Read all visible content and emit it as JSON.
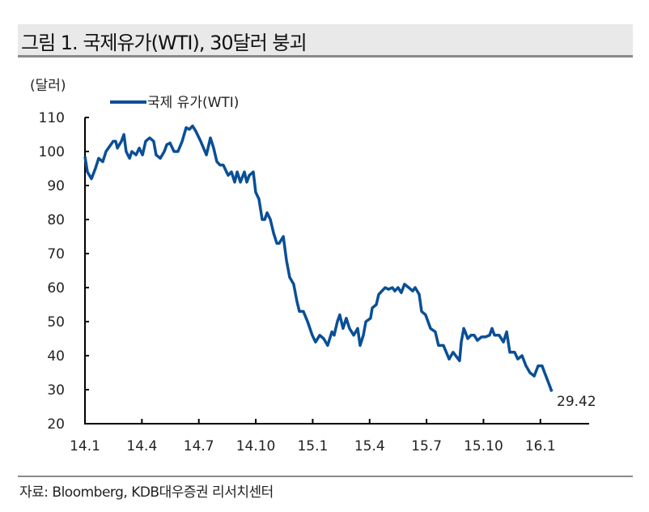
{
  "title": "그림 1. 국제유가(WTI), 30달러 붕괴",
  "source": "자료: Bloomberg, KDB대우증권 리서치센터",
  "chart_data": {
    "type": "line",
    "unit_label": "(달러)",
    "ylim": [
      20,
      110
    ],
    "yticks": [
      "20",
      "30",
      "40",
      "50",
      "60",
      "70",
      "80",
      "90",
      "100",
      "110"
    ],
    "ytick_values": [
      20,
      30,
      40,
      50,
      60,
      70,
      80,
      90,
      100,
      110
    ],
    "xticks": [
      "14.1",
      "14.4",
      "14.7",
      "14.10",
      "15.1",
      "15.4",
      "15.7",
      "15.10",
      "16.1"
    ],
    "xtick_months": [
      0,
      3,
      6,
      9,
      12,
      15,
      18,
      21,
      24
    ],
    "xlim_months": [
      0,
      26.5
    ],
    "grid": false,
    "legend_position": "top-left",
    "color": "#0a4f96",
    "series": [
      {
        "name": "국제 유가(WTI)",
        "points": [
          [
            0,
            98.5
          ],
          [
            0.13,
            94
          ],
          [
            0.34,
            92
          ],
          [
            0.55,
            95
          ],
          [
            0.72,
            98
          ],
          [
            0.94,
            97
          ],
          [
            1.11,
            100
          ],
          [
            1.49,
            103
          ],
          [
            1.62,
            103
          ],
          [
            1.71,
            101
          ],
          [
            1.92,
            103
          ],
          [
            2.05,
            105
          ],
          [
            2.17,
            100
          ],
          [
            2.35,
            98
          ],
          [
            2.47,
            100
          ],
          [
            2.69,
            99
          ],
          [
            2.86,
            101
          ],
          [
            3.03,
            99
          ],
          [
            3.2,
            103
          ],
          [
            3.41,
            104
          ],
          [
            3.62,
            103
          ],
          [
            3.75,
            99
          ],
          [
            3.97,
            98
          ],
          [
            4.18,
            100
          ],
          [
            4.31,
            102
          ],
          [
            4.48,
            102.5
          ],
          [
            4.69,
            100
          ],
          [
            4.9,
            100
          ],
          [
            5.12,
            103
          ],
          [
            5.33,
            107
          ],
          [
            5.5,
            106.5
          ],
          [
            5.67,
            107.5
          ],
          [
            5.84,
            106
          ],
          [
            6.1,
            103
          ],
          [
            6.4,
            99
          ],
          [
            6.61,
            104
          ],
          [
            6.78,
            101
          ],
          [
            6.95,
            97
          ],
          [
            7.12,
            96
          ],
          [
            7.29,
            96
          ],
          [
            7.46,
            94
          ],
          [
            7.55,
            93
          ],
          [
            7.72,
            94
          ],
          [
            7.89,
            91
          ],
          [
            8.02,
            94
          ],
          [
            8.19,
            91
          ],
          [
            8.4,
            94
          ],
          [
            8.53,
            91
          ],
          [
            8.66,
            93
          ],
          [
            8.87,
            94
          ],
          [
            9.0,
            88
          ],
          [
            9.17,
            86
          ],
          [
            9.34,
            80
          ],
          [
            9.47,
            80
          ],
          [
            9.6,
            82
          ],
          [
            9.77,
            80
          ],
          [
            9.94,
            76
          ],
          [
            10.11,
            73
          ],
          [
            10.23,
            73
          ],
          [
            10.45,
            75
          ],
          [
            10.62,
            68
          ],
          [
            10.79,
            63
          ],
          [
            11.0,
            61
          ],
          [
            11.17,
            56
          ],
          [
            11.3,
            53
          ],
          [
            11.51,
            53
          ],
          [
            11.73,
            50
          ],
          [
            11.98,
            46
          ],
          [
            12.15,
            44
          ],
          [
            12.37,
            46
          ],
          [
            12.58,
            45
          ],
          [
            12.79,
            43
          ],
          [
            13.01,
            47
          ],
          [
            13.13,
            46
          ],
          [
            13.3,
            50
          ],
          [
            13.43,
            52
          ],
          [
            13.6,
            48
          ],
          [
            13.77,
            51
          ],
          [
            13.94,
            48
          ],
          [
            14.16,
            46
          ],
          [
            14.37,
            48
          ],
          [
            14.5,
            43
          ],
          [
            14.67,
            46
          ],
          [
            14.8,
            50
          ],
          [
            15.05,
            51
          ],
          [
            15.14,
            54
          ],
          [
            15.35,
            55
          ],
          [
            15.48,
            58
          ],
          [
            15.65,
            59
          ],
          [
            15.82,
            60
          ],
          [
            15.99,
            59.5
          ],
          [
            16.2,
            60
          ],
          [
            16.33,
            59
          ],
          [
            16.5,
            60
          ],
          [
            16.67,
            58.5
          ],
          [
            16.84,
            61
          ],
          [
            17.06,
            60
          ],
          [
            17.27,
            59
          ],
          [
            17.4,
            60
          ],
          [
            17.61,
            58
          ],
          [
            17.74,
            53
          ],
          [
            17.95,
            52
          ],
          [
            18.21,
            48
          ],
          [
            18.46,
            47
          ],
          [
            18.63,
            43
          ],
          [
            18.89,
            43
          ],
          [
            19.19,
            39
          ],
          [
            19.4,
            41
          ],
          [
            19.74,
            38.5
          ],
          [
            19.83,
            44
          ],
          [
            19.96,
            48
          ],
          [
            20.04,
            47
          ],
          [
            20.17,
            45
          ],
          [
            20.34,
            46
          ],
          [
            20.51,
            46
          ],
          [
            20.68,
            44.5
          ],
          [
            20.9,
            45.5
          ],
          [
            21.11,
            45.5
          ],
          [
            21.32,
            46
          ],
          [
            21.45,
            48
          ],
          [
            21.58,
            46
          ],
          [
            21.83,
            46
          ],
          [
            22.05,
            44
          ],
          [
            22.22,
            47
          ],
          [
            22.39,
            41
          ],
          [
            22.64,
            41
          ],
          [
            22.81,
            39
          ],
          [
            23.03,
            40
          ],
          [
            23.24,
            37
          ],
          [
            23.45,
            35
          ],
          [
            23.67,
            34
          ],
          [
            23.88,
            37
          ],
          [
            24.09,
            37
          ],
          [
            24.22,
            35
          ],
          [
            24.43,
            32
          ],
          [
            24.6,
            29.42
          ]
        ]
      }
    ],
    "end_label": "29.42"
  }
}
